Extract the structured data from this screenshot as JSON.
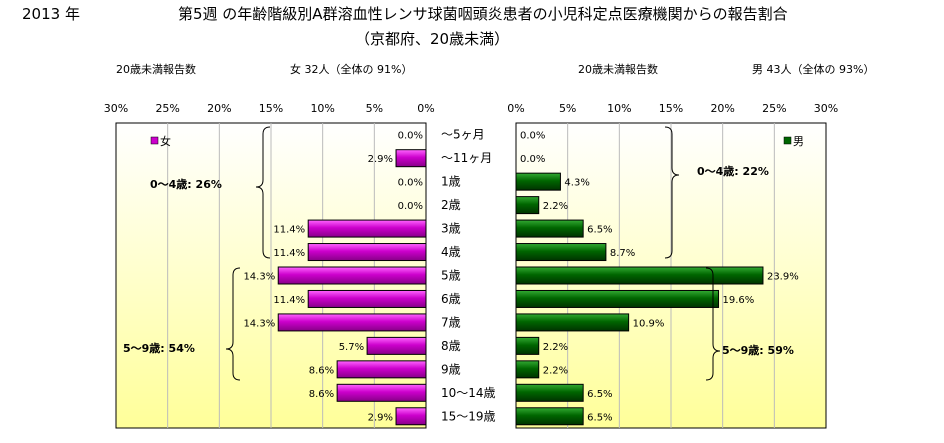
{
  "header": {
    "year": "2013 年",
    "title": "第5週 の年齢階級別A群溶血性レンサ球菌咽頭炎患者の小児科定点医療機関からの報告割合",
    "subtitle": "（京都府、20歳未満）"
  },
  "left_panel": {
    "heading": "20歳未満報告数",
    "summary": "女  32人（全体の  91%）",
    "legend": "女",
    "note_0_4": "0～4歳: 26%",
    "note_5_9": "5～9歳: 54%"
  },
  "right_panel": {
    "heading": "20歳未満報告数",
    "summary": "男  43人（全体の  93%）",
    "legend": "男",
    "note_0_4": "0～4歳: 22%",
    "note_5_9": "5～9歳: 59%"
  },
  "colors": {
    "female": "#cc00cc",
    "male": "#006600",
    "plot_gradient_top": "#ffffff",
    "plot_gradient_bottom": "#ffff99"
  },
  "chart_data": {
    "type": "bar",
    "orientation": "horizontal-butterfly",
    "categories": [
      "～5ヶ月",
      "～11ヶ月",
      "1歳",
      "2歳",
      "3歳",
      "4歳",
      "5歳",
      "6歳",
      "7歳",
      "8歳",
      "9歳",
      "10～14歳",
      "15～19歳"
    ],
    "series": [
      {
        "name": "女",
        "values": [
          0.0,
          2.9,
          0.0,
          0.0,
          11.4,
          11.4,
          14.3,
          11.4,
          14.3,
          5.7,
          8.6,
          8.6,
          2.9
        ],
        "labels": [
          "0.0%",
          "2.9%",
          "0.0%",
          "0.0%",
          "11.4%",
          "11.4%",
          "14.3%",
          "11.4%",
          "14.3%",
          "5.7%",
          "8.6%",
          "8.6%",
          "2.9%"
        ]
      },
      {
        "name": "男",
        "values": [
          0.0,
          0.0,
          4.3,
          2.2,
          6.5,
          8.7,
          23.9,
          19.6,
          10.9,
          2.2,
          2.2,
          6.5,
          6.5
        ],
        "labels": [
          "0.0%",
          "0.0%",
          "4.3%",
          "2.2%",
          "6.5%",
          "8.7%",
          "23.9%",
          "19.6%",
          "10.9%",
          "2.2%",
          "2.2%",
          "6.5%",
          "6.5%"
        ]
      }
    ],
    "xlim": [
      0,
      30
    ],
    "ticks": [
      "0%",
      "5%",
      "10%",
      "15%",
      "20%",
      "25%",
      "30%"
    ],
    "grid": true,
    "legend_left": "top-left",
    "legend_right": "top-right"
  }
}
